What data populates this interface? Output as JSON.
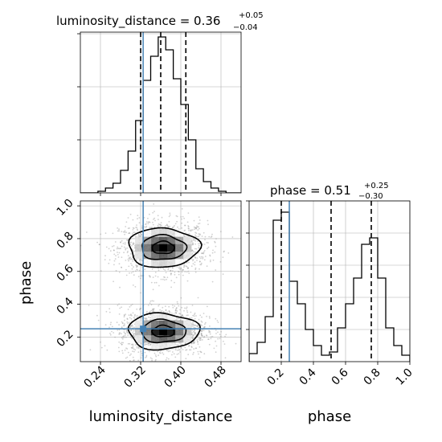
{
  "chart_data": {
    "type": "corner",
    "colors": {
      "truth": "#4682b4",
      "hist": "#000000",
      "grid": "#b0b0b0",
      "scatter": "#9a9a9a"
    },
    "panels": [
      {
        "id": "luminosity_distance_hist",
        "type": "histogram",
        "param": "luminosity_distance",
        "title": {
          "prefix": "luminosity_distance = 0.36",
          "plus": "+0.05",
          "minus": "−0.04"
        },
        "xlim": [
          0.2,
          0.52
        ],
        "ylim": [
          0,
          1.0
        ],
        "bins": [
          0.22,
          0.235,
          0.25,
          0.265,
          0.28,
          0.295,
          0.31,
          0.325,
          0.34,
          0.355,
          0.37,
          0.385,
          0.4,
          0.415,
          0.43,
          0.445,
          0.46,
          0.475,
          0.49,
          0.505
        ],
        "counts": [
          0.0,
          0.01,
          0.03,
          0.06,
          0.14,
          0.26,
          0.45,
          0.7,
          0.85,
          0.97,
          0.89,
          0.71,
          0.55,
          0.33,
          0.15,
          0.07,
          0.03,
          0.01,
          0.0,
          0.0
        ],
        "quantiles": [
          0.32,
          0.36,
          0.41
        ],
        "truth": 0.325
      },
      {
        "id": "phase_hist",
        "type": "histogram",
        "param": "phase",
        "title": {
          "prefix": "phase = 0.51",
          "plus": "+0.25",
          "minus": "−0.30"
        },
        "xlim": [
          0.0,
          1.0
        ],
        "ylim": [
          0,
          1.0
        ],
        "bins": [
          0.0,
          0.05,
          0.1,
          0.15,
          0.2,
          0.25,
          0.3,
          0.35,
          0.4,
          0.45,
          0.5,
          0.55,
          0.6,
          0.65,
          0.7,
          0.75,
          0.8,
          0.85,
          0.9,
          0.95,
          1.0
        ],
        "counts": [
          0.05,
          0.12,
          0.28,
          0.88,
          0.93,
          0.5,
          0.36,
          0.2,
          0.1,
          0.04,
          0.06,
          0.21,
          0.36,
          0.52,
          0.73,
          0.77,
          0.52,
          0.21,
          0.1,
          0.04
        ],
        "quantiles": [
          0.2,
          0.51,
          0.76
        ],
        "truth": 0.25,
        "xticks": [
          "0.2",
          "0.4",
          "0.6",
          "0.8",
          "1.0"
        ],
        "xtick_values": [
          0.2,
          0.4,
          0.6,
          0.8,
          1.0
        ],
        "xlabel": "phase"
      },
      {
        "id": "joint",
        "type": "2d-density",
        "xlim": [
          0.2,
          0.52
        ],
        "ylim": [
          0.05,
          1.03
        ],
        "xticks": [
          "0.24",
          "0.32",
          "0.40",
          "0.48"
        ],
        "xtick_values": [
          0.24,
          0.32,
          0.4,
          0.48
        ],
        "yticks": [
          "0.2",
          "0.4",
          "0.6",
          "0.8",
          "1.0"
        ],
        "ytick_values": [
          0.2,
          0.4,
          0.6,
          0.8,
          1.0
        ],
        "xlabel": "luminosity_distance",
        "ylabel": "phase",
        "modes": [
          {
            "x": 0.365,
            "y": 0.745,
            "sx": 0.035,
            "sy": 0.065
          },
          {
            "x": 0.365,
            "y": 0.235,
            "sx": 0.035,
            "sy": 0.06
          }
        ],
        "truth": {
          "x": 0.325,
          "y": 0.25
        }
      }
    ]
  }
}
